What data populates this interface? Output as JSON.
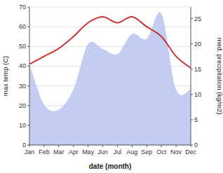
{
  "chart_data": {
    "type": "line",
    "categories": [
      "Jan",
      "Feb",
      "Mar",
      "Apr",
      "May",
      "Jun",
      "Jul",
      "Aug",
      "Sep",
      "Oct",
      "Nov",
      "Dec"
    ],
    "series": [
      {
        "type": "area",
        "axis": "y2",
        "color": "#b8c4f0",
        "values": [
          16,
          8,
          7,
          11,
          20,
          19,
          18,
          22,
          21,
          26,
          11,
          11
        ]
      },
      {
        "type": "line",
        "color": "#cc3333",
        "values": [
          41,
          45,
          49,
          55,
          62,
          65,
          62,
          65,
          60,
          55,
          45,
          39
        ]
      }
    ],
    "xlabel": "date (month)",
    "ylabel": "max temp (C)",
    "y2label": "med. precipitation (kg/m2)",
    "ylim": [
      0,
      70
    ],
    "yticks": [
      0,
      10,
      20,
      30,
      40,
      50,
      60,
      70
    ],
    "y2lim": [
      0,
      27.3
    ],
    "y2ticks": [
      0,
      5,
      10,
      15,
      20,
      25
    ],
    "grid": true
  }
}
